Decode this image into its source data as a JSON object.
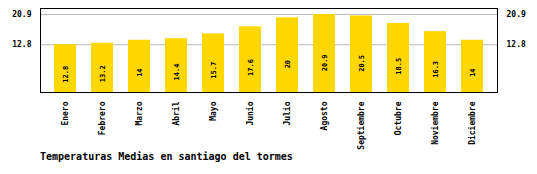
{
  "chart_data": {
    "type": "bar",
    "title": "Temperaturas Medias en santiago del tormes",
    "categories": [
      "Enero",
      "Febrero",
      "Marzo",
      "Abril",
      "Mayo",
      "Junio",
      "Julio",
      "Agosto",
      "Septiembre",
      "Octubre",
      "Noviembre",
      "Diciembre"
    ],
    "values": [
      12.8,
      13.2,
      14.0,
      14.4,
      15.7,
      17.6,
      20.0,
      20.9,
      20.5,
      18.5,
      16.3,
      14.0
    ],
    "color": "#FFD700",
    "ylim": [
      0,
      22.5
    ],
    "yticks": [
      12.8,
      20.9
    ],
    "grid": true,
    "data_labels": true
  }
}
